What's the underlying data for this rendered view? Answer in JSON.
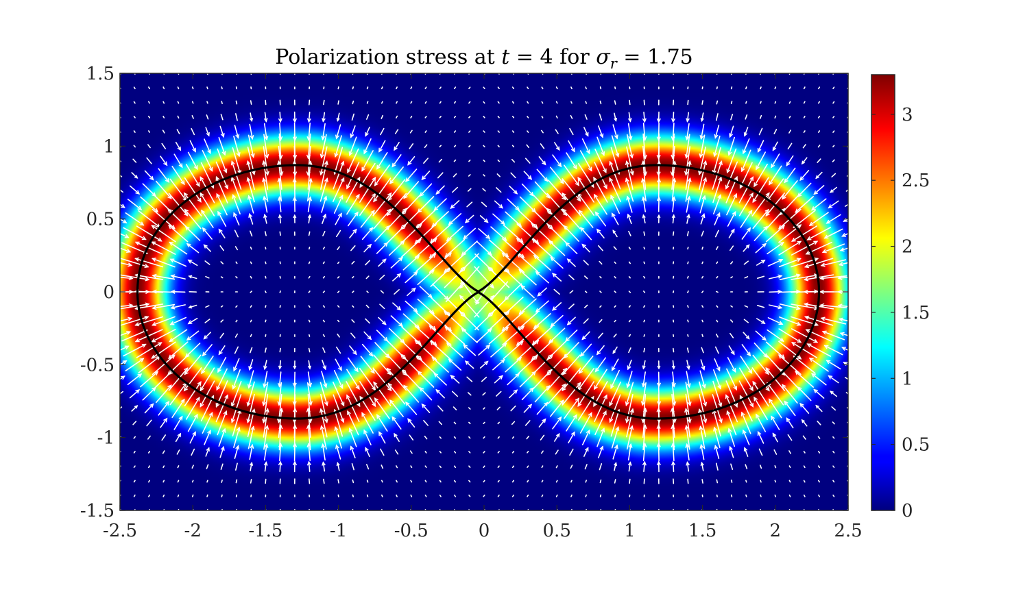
{
  "chart_data": {
    "type": "heatmap",
    "title": {
      "prefix": "Polarization stress at ",
      "t_symbol": "t",
      "t_value": " = 4 for ",
      "sigma_symbol": "σ",
      "sigma_sub": "r",
      "sigma_value": " = 1.75"
    },
    "xlabel": "",
    "ylabel": "",
    "xlim": [
      -2.5,
      2.5
    ],
    "ylim": [
      -1.5,
      1.5
    ],
    "xticks": [
      -2.5,
      -2,
      -1.5,
      -1,
      -0.5,
      0,
      0.5,
      1,
      1.5,
      2,
      2.5
    ],
    "xtick_labels": [
      "-2.5",
      "-2",
      "-1.5",
      "-1",
      "-0.5",
      "0",
      "0.5",
      "1",
      "1.5",
      "2",
      "2.5"
    ],
    "yticks": [
      1.5,
      1,
      0.5,
      0,
      -0.5,
      -1,
      -1.5
    ],
    "ytick_labels": [
      "1.5",
      "1",
      "0.5",
      "0",
      "-0.5",
      "-1",
      "-1.5"
    ],
    "colorbar": {
      "colormap": "jet",
      "clim": [
        0,
        3.3
      ],
      "ticks": [
        0,
        0.5,
        1,
        1.5,
        2,
        2.5,
        3
      ],
      "tick_labels": [
        "0",
        "0.5",
        "1",
        "1.5",
        "2",
        "2.5",
        "3"
      ]
    },
    "field": {
      "description_values": "stress magnitude concentrated in a band around each drop interface",
      "peak_value": 3.3,
      "band_halfwidth": 0.14
    },
    "interface": {
      "color": "#000000",
      "drops": [
        {
          "center_x": -1.28,
          "center_y": 0,
          "semi_x": 1.1,
          "semi_y": 0.87,
          "neck_x": -0.04,
          "neck_halfgap": 0.05
        },
        {
          "center_x": 1.18,
          "center_y": 0,
          "semi_x": 1.12,
          "semi_y": 0.87,
          "neck_x": -0.04,
          "neck_halfgap": 0.05
        }
      ]
    },
    "quiver": {
      "color": "#ffffff",
      "x_spacing": 0.1,
      "y_spacing": 0.1,
      "direction": "normal to interface",
      "max_length": 0.2
    }
  }
}
